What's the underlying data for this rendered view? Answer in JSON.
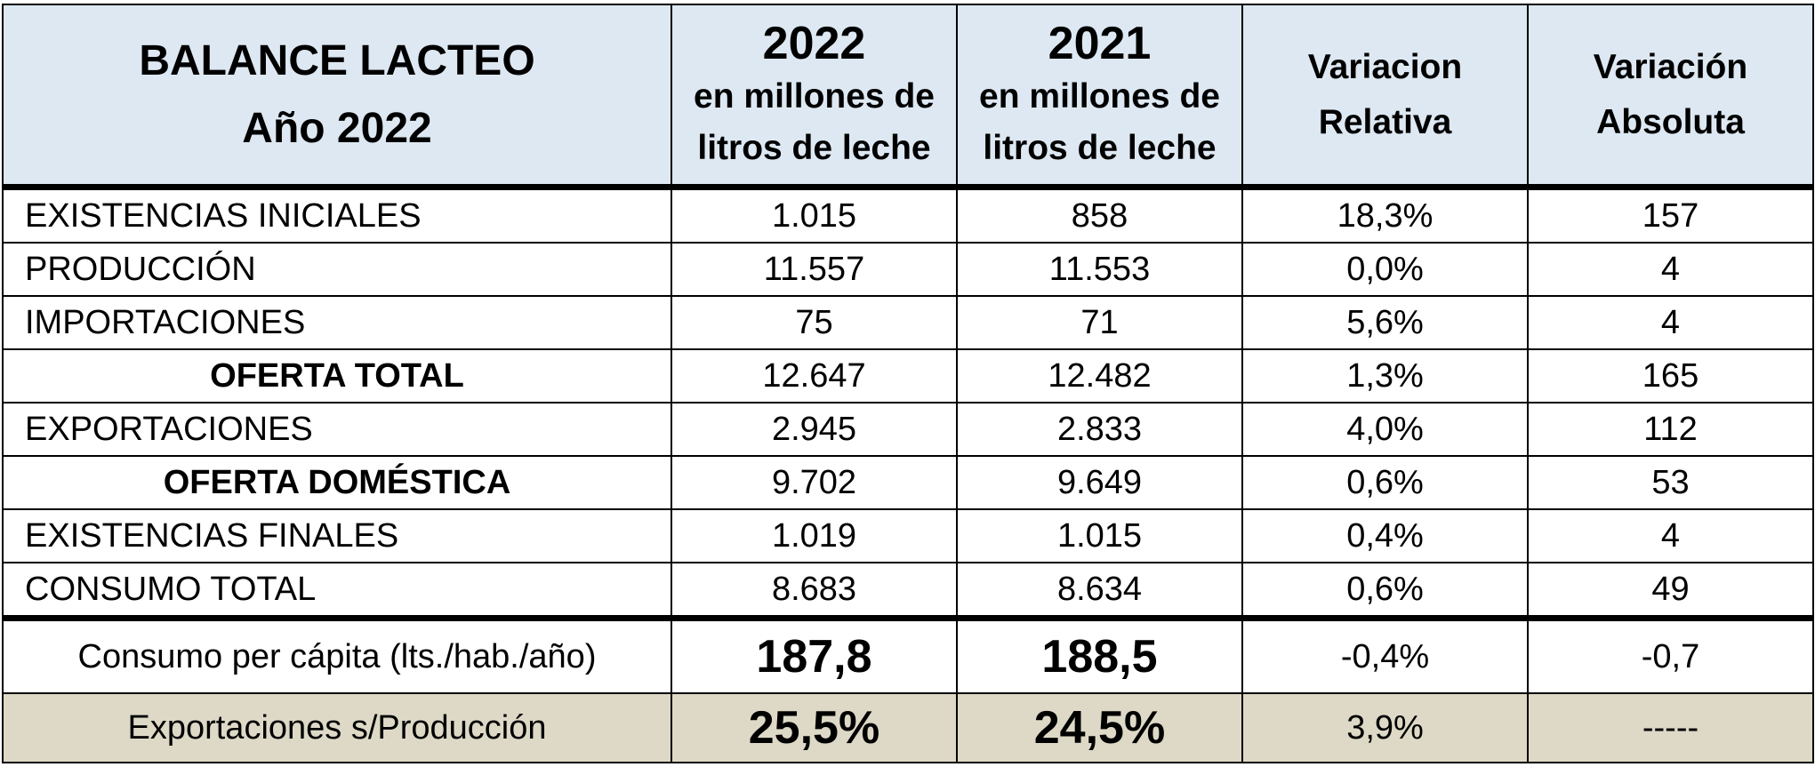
{
  "header": {
    "title_line1": "BALANCE LACTEO",
    "title_line2": "Año 2022",
    "col_2022_year": "2022",
    "col_2022_unit_line1": "en millones de",
    "col_2022_unit_line2": "litros de leche",
    "col_2021_year": "2021",
    "col_2021_unit_line1": "en millones de",
    "col_2021_unit_line2": "litros de leche",
    "var_rel_line1": "Variacion",
    "var_rel_line2": "Relativa",
    "var_abs_line1": "Variación",
    "var_abs_line2": "Absoluta"
  },
  "rows": [
    {
      "label": "EXISTENCIAS  INICIALES",
      "v2022": "1.015",
      "v2021": "858",
      "var_rel": "18,3%",
      "var_abs": "157"
    },
    {
      "label": "PRODUCCIÓN",
      "v2022": "11.557",
      "v2021": "11.553",
      "var_rel": "0,0%",
      "var_abs": "4"
    },
    {
      "label": "IMPORTACIONES",
      "v2022": "75",
      "v2021": "71",
      "var_rel": "5,6%",
      "var_abs": "4"
    },
    {
      "label": "OFERTA TOTAL",
      "v2022": "12.647",
      "v2021": "12.482",
      "var_rel": "1,3%",
      "var_abs": "165"
    },
    {
      "label": "EXPORTACIONES",
      "v2022": "2.945",
      "v2021": "2.833",
      "var_rel": "4,0%",
      "var_abs": "112"
    },
    {
      "label": "OFERTA DOMÉSTICA",
      "v2022": "9.702",
      "v2021": "9.649",
      "var_rel": "0,6%",
      "var_abs": "53"
    },
    {
      "label": "EXISTENCIAS FINALES",
      "v2022": "1.019",
      "v2021": "1.015",
      "var_rel": "0,4%",
      "var_abs": "4"
    },
    {
      "label": "CONSUMO TOTAL",
      "v2022": "8.683",
      "v2021": "8.634",
      "var_rel": "0,6%",
      "var_abs": "49"
    }
  ],
  "per_capita": {
    "label": "Consumo per cápita (lts./hab./año)",
    "v2022": "187,8",
    "v2021": "188,5",
    "var_rel": "-0,4%",
    "var_abs": "-0,7"
  },
  "export_ratio": {
    "label": "Exportaciones s/Producción",
    "v2022": "25,5%",
    "v2021": "24,5%",
    "var_rel": "3,9%",
    "var_abs": "-----"
  },
  "colors": {
    "header_bg": "#dde8f2",
    "footer_bg": "#ddd9c6",
    "border": "#000000"
  }
}
